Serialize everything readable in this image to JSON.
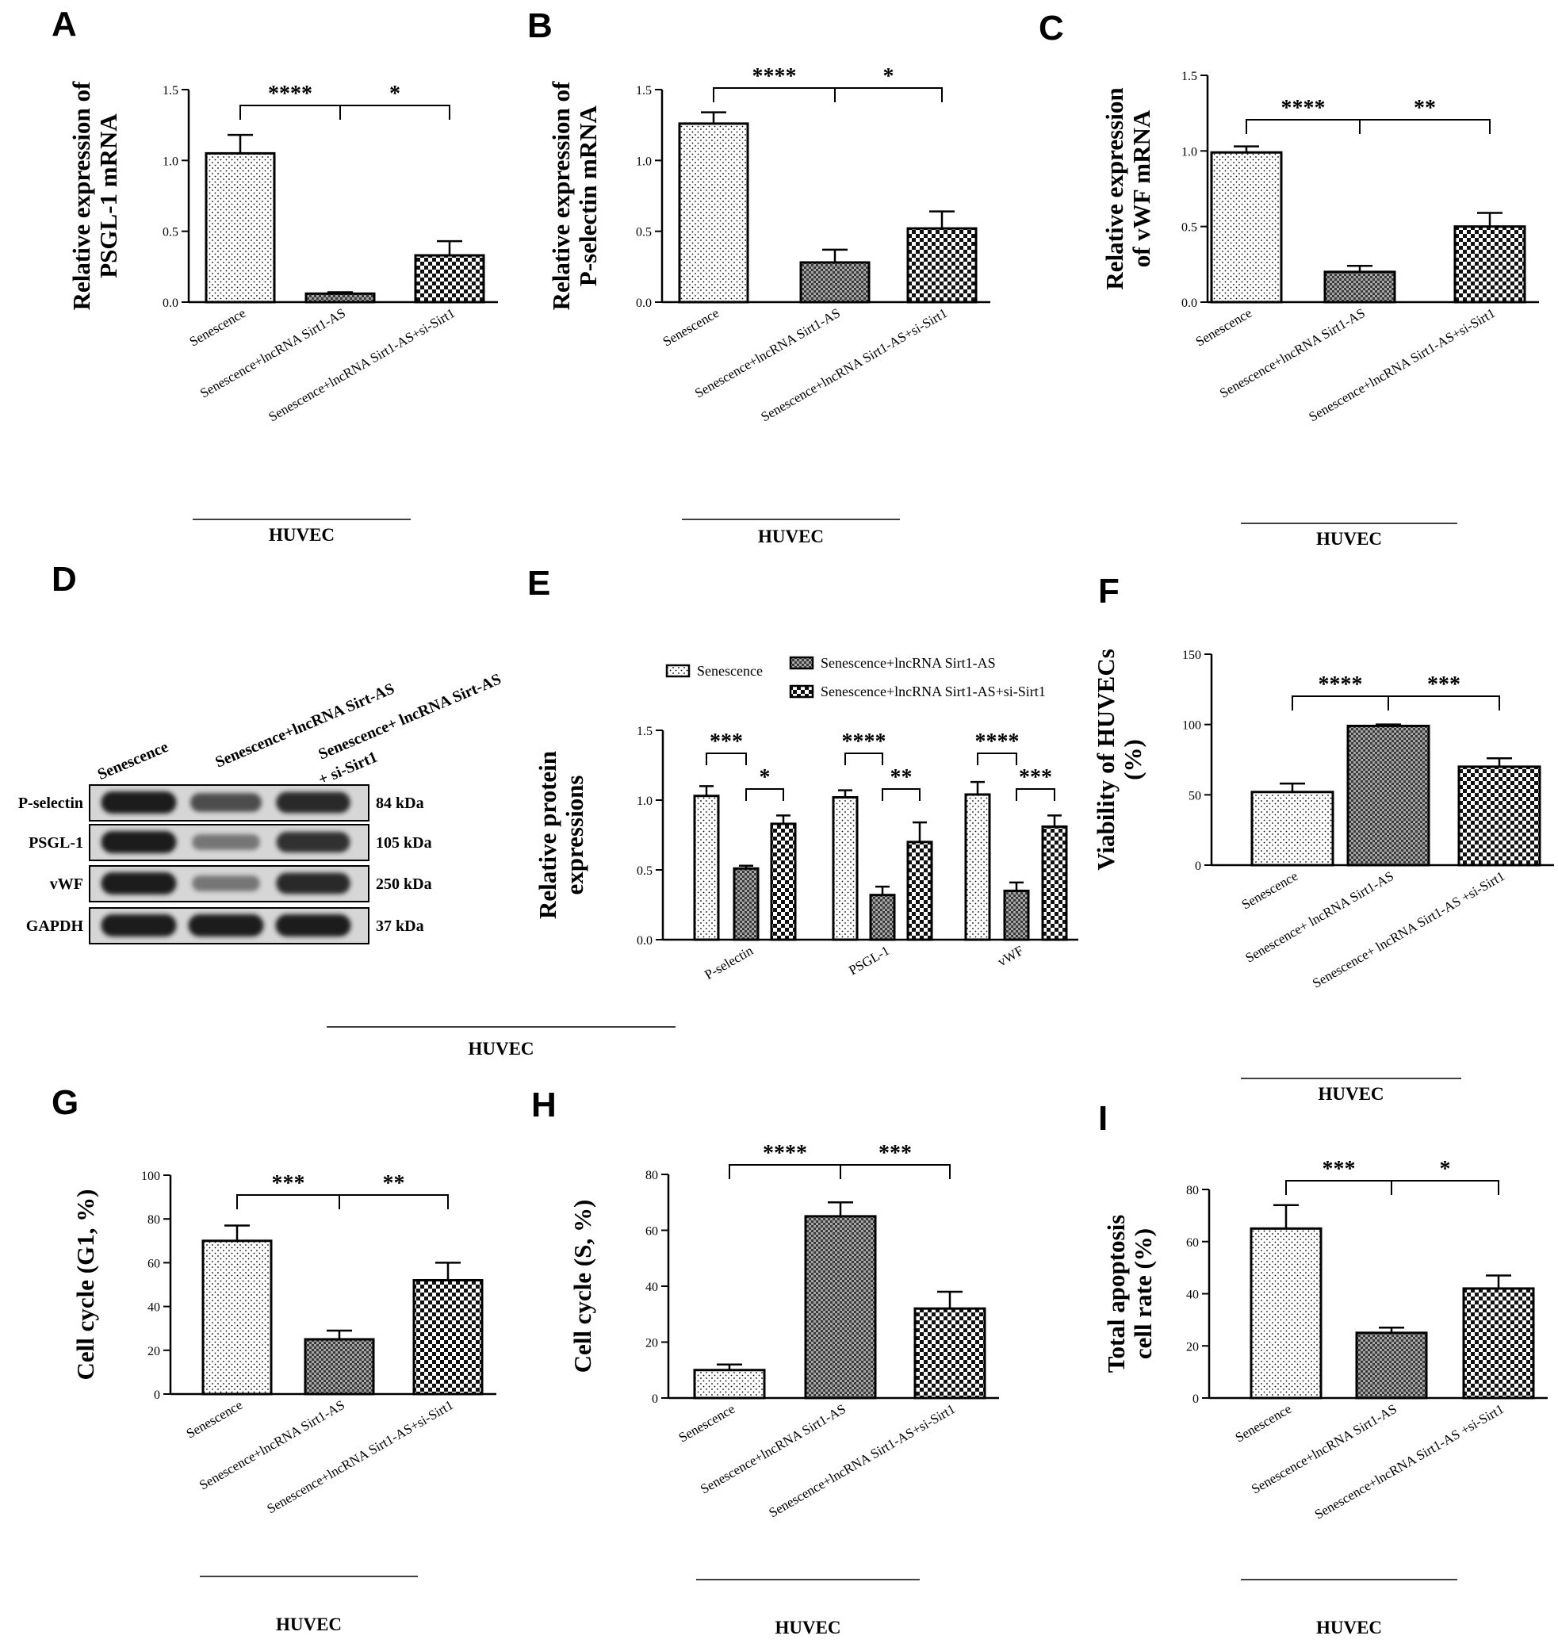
{
  "panels": {
    "A": {
      "letter": "A"
    },
    "B": {
      "letter": "B"
    },
    "C": {
      "letter": "C"
    },
    "D": {
      "letter": "D"
    },
    "E": {
      "letter": "E"
    },
    "F": {
      "letter": "F"
    },
    "G": {
      "letter": "G"
    },
    "H": {
      "letter": "H"
    },
    "I": {
      "letter": "I"
    }
  },
  "colors": {
    "ink": "#000000",
    "background": "#ffffff",
    "blot_band": "#1a1a1a",
    "blot_bg": "#d6d6d6"
  },
  "patterns": [
    "light-dots",
    "medium-checker",
    "coarse-checker"
  ],
  "chart_data": [
    {
      "panel": "A",
      "type": "bar",
      "ylabel_lines": [
        "Relative  expression of",
        "PSGL-1 mRNA"
      ],
      "ylim": [
        0,
        1.5
      ],
      "yticks": [
        "0.0",
        "0.5",
        "1.0",
        "1.5"
      ],
      "categories": [
        "Senescence",
        "Senescence+lncRNA Sirt1-AS",
        "Senescence+lncRNA Sirt1-AS+si-Sirt1"
      ],
      "values": [
        1.05,
        0.06,
        0.33
      ],
      "errors": [
        0.13,
        0.01,
        0.1
      ],
      "significance": [
        "****",
        "*"
      ],
      "group_label": "HUVEC"
    },
    {
      "panel": "B",
      "type": "bar",
      "ylabel_lines": [
        "Relative  expression of",
        "P-selectin mRNA"
      ],
      "ylim": [
        0,
        1.5
      ],
      "yticks": [
        "0.0",
        "0.5",
        "1.0",
        "1.5"
      ],
      "categories": [
        "Senescence",
        "Senescence+lncRNA Sirt1-AS",
        "Senescence+lncRNA Sirt1-AS+si-Sirt1"
      ],
      "values": [
        1.26,
        0.28,
        0.52
      ],
      "errors": [
        0.08,
        0.09,
        0.12
      ],
      "significance": [
        "****",
        "*"
      ],
      "group_label": "HUVEC"
    },
    {
      "panel": "C",
      "type": "bar",
      "ylabel_lines": [
        "Relative  expression",
        "of vWF mRNA"
      ],
      "ylim": [
        0,
        1.5
      ],
      "yticks": [
        "0.0",
        "0.5",
        "1.0",
        "1.5"
      ],
      "categories": [
        "Senescence",
        "Senescence+lncRNA Sirt1-AS",
        "Senescence+lncRNA Sirt1-AS+si-Sirt1"
      ],
      "values": [
        0.99,
        0.2,
        0.5
      ],
      "errors": [
        0.04,
        0.04,
        0.09
      ],
      "significance": [
        "****",
        "**"
      ],
      "group_label": "HUVEC"
    },
    {
      "panel": "E",
      "type": "bar",
      "ylabel_lines": [
        "Relative protein",
        "expressions"
      ],
      "ylim": [
        0,
        1.5
      ],
      "yticks": [
        "0.0",
        "0.5",
        "1.0",
        "1.5"
      ],
      "categories": [
        "P-selectin",
        "PSGL-1",
        "vWF"
      ],
      "series": [
        {
          "name": "Senescence",
          "values": [
            1.03,
            1.02,
            1.04
          ],
          "errors": [
            0.07,
            0.05,
            0.09
          ]
        },
        {
          "name": "Senescence+lncRNA Sirt1-AS",
          "values": [
            0.51,
            0.32,
            0.35
          ],
          "errors": [
            0.02,
            0.06,
            0.06
          ]
        },
        {
          "name": "Senescence+lncRNA Sirt1-AS+si-Sirt1",
          "values": [
            0.83,
            0.7,
            0.81
          ],
          "errors": [
            0.06,
            0.14,
            0.08
          ]
        }
      ],
      "significance": [
        [
          "***",
          "*"
        ],
        [
          "****",
          "**"
        ],
        [
          "****",
          "***"
        ]
      ],
      "group_label": "HUVEC"
    },
    {
      "panel": "F",
      "type": "bar",
      "ylabel_lines": [
        "Viability of HUVECs",
        "(%)"
      ],
      "ylim": [
        0,
        150
      ],
      "yticks": [
        "0",
        "50",
        "100",
        "150"
      ],
      "categories": [
        "Senescence",
        "Senescence+ lncRNA Sirt1-AS",
        "Senescence+ lncRNA Sirt1-AS +si-Sirt1"
      ],
      "values": [
        52,
        99,
        70
      ],
      "errors": [
        6,
        1,
        6
      ],
      "significance": [
        "****",
        "***"
      ],
      "group_label": "HUVEC"
    },
    {
      "panel": "G",
      "type": "bar",
      "ylabel_lines": [
        "Cell cycle   (G1, %)"
      ],
      "ylim": [
        0,
        100
      ],
      "yticks": [
        "0",
        "20",
        "40",
        "60",
        "80",
        "100"
      ],
      "categories": [
        "Senescence",
        "Senescence+lncRNA Sirt1-AS",
        "Senescence+lncRNA Sirt1-AS+si-Sirt1"
      ],
      "values": [
        70,
        25,
        52
      ],
      "errors": [
        7,
        4,
        8
      ],
      "significance": [
        "***",
        "**"
      ],
      "group_label": "HUVEC"
    },
    {
      "panel": "H",
      "type": "bar",
      "ylabel_lines": [
        "Cell cycle   (S, %)"
      ],
      "ylim": [
        0,
        80
      ],
      "yticks": [
        "0",
        "20",
        "40",
        "60",
        "80"
      ],
      "categories": [
        "Senescence",
        "Senescence+lncRNA Sirt1-AS",
        "Senescence+lncRNA Sirt1-AS+si-Sirt1"
      ],
      "values": [
        10,
        65,
        32
      ],
      "errors": [
        2,
        5,
        6
      ],
      "significance": [
        "****",
        "***"
      ],
      "group_label": "HUVEC"
    },
    {
      "panel": "I",
      "type": "bar",
      "ylabel_lines": [
        "Total apoptosis",
        "cell rate (%)"
      ],
      "ylim": [
        0,
        80
      ],
      "yticks": [
        "0",
        "20",
        "40",
        "60",
        "80"
      ],
      "categories": [
        "Senescence",
        "Senescence+lncRNA Sirt1-AS",
        "Senescence+lncRNA Sirt1-AS +si-Sirt1"
      ],
      "values": [
        65,
        25,
        42
      ],
      "errors": [
        9,
        2,
        5
      ],
      "significance": [
        "***",
        "*"
      ],
      "group_label": "HUVEC"
    }
  ],
  "blot": {
    "columns": [
      "Senescence",
      "Senescence+lncRNA Sirt-AS",
      "Senescence+ lncRNA Sirt-AS",
      "+ si-Sirt1"
    ],
    "rows": [
      {
        "label": "P-selectin",
        "kda": "84 kDa",
        "intensity": [
          1.0,
          0.65,
          0.9
        ]
      },
      {
        "label": "PSGL-1",
        "kda": "105 kDa",
        "intensity": [
          1.0,
          0.35,
          0.85
        ]
      },
      {
        "label": "vWF",
        "kda": "250 kDa",
        "intensity": [
          1.0,
          0.35,
          0.9
        ]
      },
      {
        "label": "GAPDH",
        "kda": "37 kDa",
        "intensity": [
          1.0,
          1.0,
          1.0
        ]
      }
    ],
    "group_label": "HUVEC"
  }
}
